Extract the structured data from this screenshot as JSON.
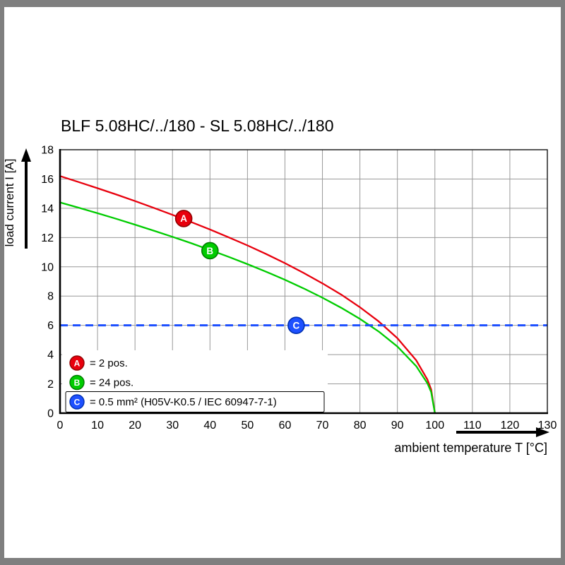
{
  "page": {
    "background": "#7f7f7f",
    "panel": "#ffffff"
  },
  "title": "BLF 5.08HC/../180 - SL 5.08HC/../180",
  "chart_data": {
    "type": "line",
    "title": "BLF 5.08HC/../180 - SL 5.08HC/../180",
    "xlabel": "ambient temperature T [°C]",
    "ylabel": "load current I [A]",
    "xlim": [
      0,
      130
    ],
    "ylim": [
      0,
      18
    ],
    "x_ticks": [
      0,
      10,
      20,
      30,
      40,
      50,
      60,
      70,
      80,
      90,
      100,
      110,
      120,
      130
    ],
    "y_ticks": [
      0,
      2,
      4,
      6,
      8,
      10,
      12,
      14,
      16,
      18
    ],
    "grid": true,
    "grid_color": "#999999",
    "axis_color": "#000000",
    "legend_position": "bottom-left-inside",
    "x": [
      0,
      5,
      10,
      15,
      20,
      25,
      30,
      35,
      40,
      45,
      50,
      55,
      60,
      65,
      70,
      75,
      80,
      85,
      90,
      95,
      98,
      99,
      100
    ],
    "series": [
      {
        "name": "A",
        "legend_label": "= 2 pos.",
        "color": "#e8000d",
        "stroke_dark": "#8f0000",
        "style": "solid",
        "boxed": false,
        "marker": {
          "letter": "A",
          "x": 33,
          "y": 13.3
        },
        "values": [
          16.2,
          15.79,
          15.37,
          14.94,
          14.49,
          14.03,
          13.55,
          13.06,
          12.55,
          12.01,
          11.46,
          10.87,
          10.25,
          9.58,
          8.87,
          8.1,
          7.24,
          6.27,
          5.12,
          3.62,
          2.29,
          1.62,
          0
        ]
      },
      {
        "name": "B",
        "legend_label": "= 24 pos.",
        "color": "#00cc00",
        "stroke_dark": "#007a00",
        "style": "solid",
        "boxed": false,
        "marker": {
          "letter": "B",
          "x": 40,
          "y": 11.1
        },
        "values": [
          14.4,
          14.04,
          13.66,
          13.28,
          12.88,
          12.47,
          12.05,
          11.61,
          11.15,
          10.68,
          10.18,
          9.66,
          9.11,
          8.52,
          7.89,
          7.2,
          6.44,
          5.58,
          4.55,
          3.22,
          2.04,
          1.44,
          0
        ]
      },
      {
        "name": "C",
        "legend_label": "= 0.5 mm² (H05V-K0.5 / IEC 60947-7-1)",
        "color": "#1e50ff",
        "stroke_dark": "#0030b0",
        "style": "dashed-horizontal",
        "boxed": true,
        "value": 6,
        "marker": {
          "letter": "C",
          "x": 63,
          "y": 6
        }
      }
    ]
  }
}
